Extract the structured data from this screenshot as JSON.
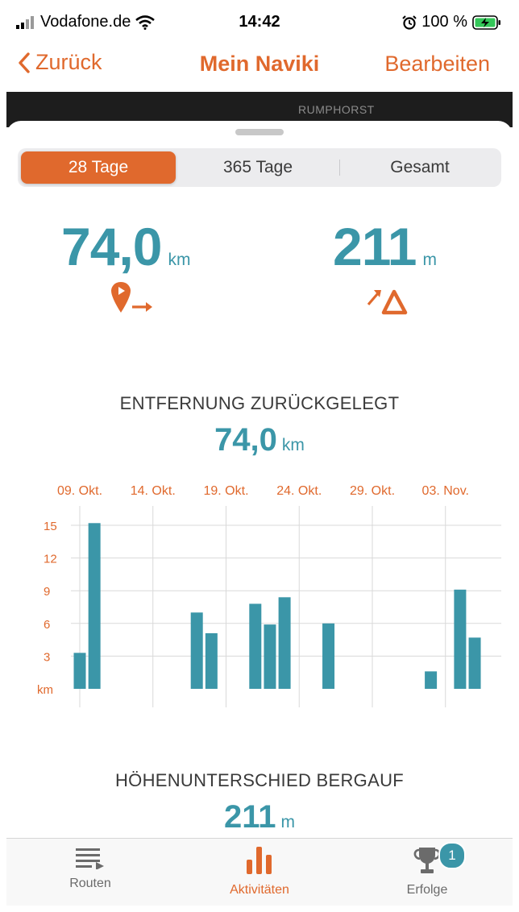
{
  "status_bar": {
    "carrier": "Vodafone.de",
    "time": "14:42",
    "battery": "100 %"
  },
  "nav": {
    "back_label": "Zurück",
    "title": "Mein Naviki",
    "edit_label": "Bearbeiten"
  },
  "map": {
    "place_label": "RUMPHORST"
  },
  "segments": [
    {
      "label": "28 Tage",
      "selected": true
    },
    {
      "label": "365 Tage",
      "selected": false
    },
    {
      "label": "Gesamt",
      "selected": false
    }
  ],
  "summary": {
    "distance": {
      "value": "74,0",
      "unit": "km",
      "icon": "route-distance-icon"
    },
    "elevation": {
      "value": "211",
      "unit": "m",
      "icon": "elevation-gain-icon"
    }
  },
  "distance_section": {
    "title": "ENTFERNUNG ZURÜCKGELEGT",
    "value": "74,0",
    "unit": "km"
  },
  "elevation_section": {
    "title": "HÖHENUNTERSCHIED BERGAUF",
    "value": "211",
    "unit": "m"
  },
  "chart_data": {
    "type": "bar",
    "x_tick_labels": [
      "09. Okt.",
      "14. Okt.",
      "19. Okt.",
      "24. Okt.",
      "29. Okt.",
      "03. Nov."
    ],
    "y_tick_labels": [
      "15",
      "12",
      "9",
      "6",
      "3"
    ],
    "yunit": "km",
    "ylim": [
      0,
      15
    ],
    "grid": true,
    "x": [
      "09. Okt.",
      "10. Okt.",
      "11. Okt.",
      "12. Okt.",
      "13. Okt.",
      "14. Okt.",
      "15. Okt.",
      "16. Okt.",
      "17. Okt.",
      "18. Okt.",
      "19. Okt.",
      "20. Okt.",
      "21. Okt.",
      "22. Okt.",
      "23. Okt.",
      "24. Okt.",
      "25. Okt.",
      "26. Okt.",
      "27. Okt.",
      "28. Okt.",
      "29. Okt.",
      "30. Okt.",
      "31. Okt.",
      "01. Nov.",
      "02. Nov.",
      "03. Nov.",
      "04. Nov.",
      "05. Nov."
    ],
    "values": [
      3.3,
      15.2,
      0,
      0,
      0,
      0,
      0,
      0,
      7.0,
      5.1,
      0,
      0,
      7.8,
      5.9,
      8.4,
      0,
      0,
      6.0,
      0,
      0,
      0,
      0,
      0,
      0,
      1.6,
      0,
      9.1,
      4.7
    ]
  },
  "tabs": [
    {
      "label": "Routen",
      "icon": "routes-list-icon",
      "active": false
    },
    {
      "label": "Aktivitäten",
      "icon": "activities-chart-icon",
      "active": true
    },
    {
      "label": "Erfolge",
      "icon": "trophy-icon",
      "active": false,
      "badge": "1"
    }
  ],
  "colors": {
    "accent": "#e0692d",
    "teal": "#3b96a8",
    "grid": "#d9d9d9",
    "inactive_tab": "#6b6b6b"
  }
}
